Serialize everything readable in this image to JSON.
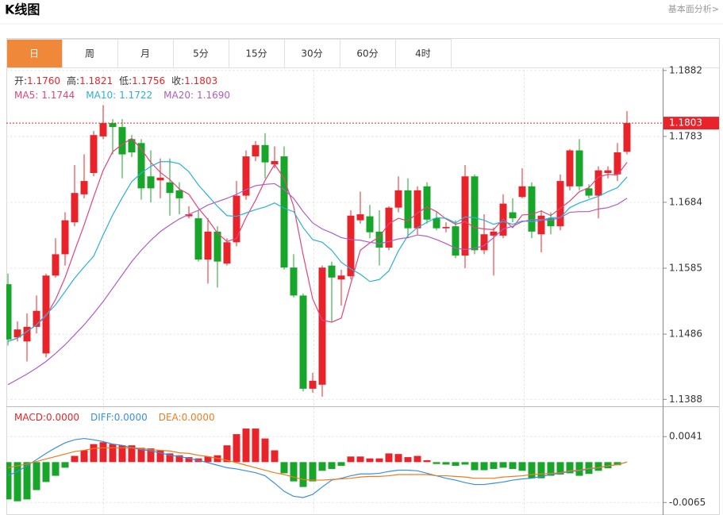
{
  "header": {
    "title": "K线图",
    "link": "基本面分析>"
  },
  "tabs": [
    {
      "label": "日",
      "active": true
    },
    {
      "label": "周"
    },
    {
      "label": "月"
    },
    {
      "label": "5分"
    },
    {
      "label": "15分"
    },
    {
      "label": "30分"
    },
    {
      "label": "60分"
    },
    {
      "label": "4时"
    }
  ],
  "chart_data": [
    {
      "type": "candlestick",
      "up_color": "#e8242a",
      "down_color": "#17a52a",
      "grid": true,
      "ylim": [
        1.138,
        1.1883
      ],
      "yticks": [
        1.1882,
        1.1783,
        1.1684,
        1.1585,
        1.1486,
        1.1388
      ],
      "readout": [
        {
          "name": "开:",
          "value": 1.176,
          "label": "1.1760"
        },
        {
          "name": "高:",
          "value": 1.1821,
          "label": "1.1821"
        },
        {
          "name": "低:",
          "value": 1.1756,
          "label": "1.1756"
        },
        {
          "name": "收:",
          "value": 1.1803,
          "label": "1.1803"
        }
      ],
      "open": [
        1.1561,
        1.1481,
        1.1475,
        1.1497,
        1.1457,
        1.1574,
        1.1606,
        1.1654,
        1.1696,
        1.1728,
        1.1783,
        1.1803,
        1.1797,
        1.1779,
        1.1773,
        1.1723,
        1.1717,
        1.1714,
        1.1702,
        1.1663,
        1.166,
        1.1598,
        1.164,
        1.1592,
        1.1624,
        1.1694,
        1.1753,
        1.177,
        1.1741,
        1.1753,
        1.1586,
        1.1544,
        1.1404,
        1.141,
        1.1589,
        1.1568,
        1.1573,
        1.1657,
        1.1663,
        1.164,
        1.1616,
        1.1676,
        1.1702,
        1.1645,
        1.1708,
        1.166,
        1.1645,
        1.1648,
        1.1604,
        1.1723,
        1.1612,
        1.1634,
        1.1634,
        1.1669,
        1.1692,
        1.1708,
        1.1636,
        1.166,
        1.1648,
        1.1708,
        1.1762,
        1.1705,
        1.1694,
        1.1728,
        1.1726,
        1.176
      ],
      "high": [
        1.1577,
        1.1505,
        1.1517,
        1.1544,
        1.1577,
        1.163,
        1.1669,
        1.174,
        1.1756,
        1.1791,
        1.183,
        1.1809,
        1.1809,
        1.1785,
        1.1779,
        1.1762,
        1.175,
        1.175,
        1.1714,
        1.1678,
        1.1672,
        1.166,
        1.1648,
        1.163,
        1.1716,
        1.1762,
        1.1776,
        1.1788,
        1.1768,
        1.1768,
        1.1606,
        1.1547,
        1.1428,
        1.1589,
        1.1595,
        1.1583,
        1.1672,
        1.17,
        1.168,
        1.1672,
        1.1678,
        1.1723,
        1.172,
        1.1708,
        1.1714,
        1.1669,
        1.1654,
        1.1657,
        1.174,
        1.1726,
        1.1666,
        1.1646,
        1.1696,
        1.169,
        1.1735,
        1.1714,
        1.1672,
        1.1669,
        1.1726,
        1.1764,
        1.1779,
        1.1711,
        1.1738,
        1.1738,
        1.1773,
        1.1821
      ],
      "low": [
        1.1469,
        1.1475,
        1.1445,
        1.1487,
        1.1451,
        1.1571,
        1.1589,
        1.1648,
        1.169,
        1.1723,
        1.1779,
        1.1756,
        1.172,
        1.1752,
        1.1688,
        1.1684,
        1.169,
        1.1664,
        1.1666,
        1.166,
        1.1595,
        1.1562,
        1.1556,
        1.1589,
        1.1618,
        1.1688,
        1.1746,
        1.172,
        1.1735,
        1.1583,
        1.1541,
        1.14,
        1.1398,
        1.1392,
        1.1505,
        1.1529,
        1.1568,
        1.1652,
        1.163,
        1.1589,
        1.1612,
        1.1669,
        1.163,
        1.1636,
        1.1652,
        1.1642,
        1.1639,
        1.16,
        1.1585,
        1.1606,
        1.1606,
        1.1574,
        1.163,
        1.1654,
        1.169,
        1.163,
        1.1609,
        1.1636,
        1.1642,
        1.1702,
        1.1702,
        1.169,
        1.166,
        1.172,
        1.1716,
        1.1756
      ],
      "close": [
        1.1478,
        1.1493,
        1.1497,
        1.1521,
        1.1574,
        1.1606,
        1.1657,
        1.1698,
        1.1716,
        1.1785,
        1.1803,
        1.1797,
        1.1756,
        1.1759,
        1.1705,
        1.1705,
        1.1721,
        1.1698,
        1.169,
        1.1666,
        1.1598,
        1.164,
        1.1595,
        1.1624,
        1.1694,
        1.1753,
        1.177,
        1.1744,
        1.1746,
        1.1586,
        1.1544,
        1.1404,
        1.1416,
        1.1586,
        1.1571,
        1.1574,
        1.1664,
        1.1666,
        1.1639,
        1.1616,
        1.1676,
        1.1702,
        1.1645,
        1.1702,
        1.1658,
        1.1645,
        1.1647,
        1.1604,
        1.1723,
        1.1612,
        1.1636,
        1.164,
        1.1682,
        1.166,
        1.1708,
        1.164,
        1.1664,
        1.1648,
        1.1716,
        1.1762,
        1.1708,
        1.1694,
        1.1732,
        1.1732,
        1.1759,
        1.1803
      ],
      "series": [
        {
          "name": "MA5:",
          "type": "line",
          "color": "#e0457b",
          "current": {
            "value": 1.1744,
            "label": "1.1744"
          },
          "values": [
            1.1475,
            1.148,
            1.149,
            1.15,
            1.1513,
            1.1538,
            1.1571,
            1.1611,
            1.165,
            1.1692,
            1.1732,
            1.176,
            1.1771,
            1.178,
            1.1764,
            1.1744,
            1.1729,
            1.1718,
            1.1704,
            1.1696,
            1.1675,
            1.1658,
            1.1638,
            1.1625,
            1.163,
            1.1661,
            1.1687,
            1.1717,
            1.1741,
            1.172,
            1.1678,
            1.1605,
            1.1539,
            1.1507,
            1.1504,
            1.151,
            1.1562,
            1.1612,
            1.1623,
            1.1632,
            1.1652,
            1.166,
            1.1656,
            1.1668,
            1.1677,
            1.167,
            1.1659,
            1.1651,
            1.1655,
            1.1646,
            1.1644,
            1.1643,
            1.1659,
            1.1646,
            1.1665,
            1.1666,
            1.1671,
            1.1664,
            1.1675,
            1.1686,
            1.17,
            1.1706,
            1.1722,
            1.1726,
            1.1725,
            1.1744
          ]
        },
        {
          "name": "MA10:",
          "type": "line",
          "color": "#2bb0d9",
          "current": {
            "value": 1.1722,
            "label": "1.1722"
          },
          "values": [
            1.1475,
            1.148,
            1.149,
            1.15,
            1.1515,
            1.153,
            1.155,
            1.157,
            1.1587,
            1.1603,
            1.1635,
            1.1665,
            1.1691,
            1.1715,
            1.1728,
            1.1738,
            1.1745,
            1.1745,
            1.1742,
            1.173,
            1.171,
            1.1694,
            1.1678,
            1.1664,
            1.1663,
            1.1668,
            1.1673,
            1.1677,
            1.1683,
            1.1675,
            1.167,
            1.1646,
            1.1628,
            1.1624,
            1.1612,
            1.1594,
            1.1584,
            1.1576,
            1.1565,
            1.1568,
            1.1581,
            1.1611,
            1.1634,
            1.1646,
            1.1654,
            1.1661,
            1.166,
            1.1653,
            1.1662,
            1.1661,
            1.1657,
            1.1651,
            1.1655,
            1.1651,
            1.1656,
            1.1655,
            1.1657,
            1.1661,
            1.1661,
            1.1676,
            1.1683,
            1.1688,
            1.1693,
            1.17,
            1.1706,
            1.1722
          ]
        },
        {
          "name": "MA20:",
          "type": "line",
          "color": "#b05cc6",
          "current": {
            "value": 1.169,
            "label": "1.1690"
          },
          "values": [
            1.141,
            1.1418,
            1.1426,
            1.1435,
            1.1445,
            1.1457,
            1.147,
            1.1485,
            1.15,
            1.1517,
            1.1535,
            1.1555,
            1.1575,
            1.1595,
            1.1612,
            1.1627,
            1.164,
            1.165,
            1.1659,
            1.1666,
            1.1672,
            1.168,
            1.1685,
            1.169,
            1.1696,
            1.1703,
            1.1709,
            1.1711,
            1.1712,
            1.1703,
            1.169,
            1.167,
            1.1653,
            1.1644,
            1.1638,
            1.1631,
            1.1628,
            1.1627,
            1.1624,
            1.1622,
            1.1625,
            1.1629,
            1.1631,
            1.1635,
            1.1633,
            1.1628,
            1.1622,
            1.1615,
            1.1613,
            1.1615,
            1.1619,
            1.1631,
            1.1644,
            1.1648,
            1.1655,
            1.1658,
            1.1658,
            1.1657,
            1.1661,
            1.1669,
            1.167,
            1.167,
            1.1674,
            1.1676,
            1.1681,
            1.169
          ]
        }
      ]
    },
    {
      "type": "macd",
      "grid": true,
      "ylim": [
        -0.008,
        0.0086
      ],
      "yticks": [
        0.0041,
        -0.0065
      ],
      "series": [
        {
          "name": "MACD:",
          "type": "bar",
          "color": "#e8242a",
          "up_color": "#e8242a",
          "down_color": "#17a52a",
          "current": {
            "value": 0,
            "label": "0.0000"
          },
          "values": [
            -0.006,
            -0.0063,
            -0.006,
            -0.0045,
            -0.0032,
            -0.0022,
            -0.0009,
            0.001,
            0.0019,
            0.0029,
            0.0032,
            0.0029,
            0.0027,
            0.0027,
            0.0023,
            0.0022,
            0.0019,
            0.0014,
            0.0011,
            0.0008,
            0.0006,
            0.0009,
            0.0011,
            0.0027,
            0.0045,
            0.0054,
            0.0054,
            0.0038,
            0.0019,
            -0.0018,
            -0.0031,
            -0.004,
            -0.0031,
            -0.0014,
            -0.0011,
            -0.0006,
            0.0009,
            0.0009,
            0.0006,
            0.0006,
            0.0014,
            0.0013,
            0.0008,
            0.001,
            0.0003,
            -0.0003,
            -0.0004,
            -0.0006,
            -0.0004,
            -0.0013,
            -0.0013,
            -0.0011,
            -0.0009,
            -0.0011,
            -0.0014,
            -0.0026,
            -0.0026,
            -0.0022,
            -0.002,
            -0.0018,
            -0.0022,
            -0.0019,
            -0.0014,
            -0.001,
            -0.0005,
            0
          ]
        },
        {
          "name": "DIFF:",
          "type": "line",
          "color": "#3a8fe0",
          "current": {
            "value": 0,
            "label": "0.0000"
          },
          "values": [
            -0.0022,
            -0.0015,
            -0.0006,
            0.0004,
            0.0014,
            0.0023,
            0.0031,
            0.0036,
            0.0038,
            0.0036,
            0.0033,
            0.0029,
            0.0027,
            0.0023,
            0.002,
            0.0018,
            0.0015,
            0.0011,
            0.0009,
            0.0006,
            0.0003,
            -0.0001,
            -0.0005,
            -0.0009,
            -0.0011,
            -0.0014,
            -0.0017,
            -0.0022,
            -0.0034,
            -0.0047,
            -0.0055,
            -0.0057,
            -0.0052,
            -0.004,
            -0.0029,
            -0.0026,
            -0.0022,
            -0.0019,
            -0.0019,
            -0.0018,
            -0.0015,
            -0.0013,
            -0.0013,
            -0.0014,
            -0.0018,
            -0.0022,
            -0.0026,
            -0.0029,
            -0.0033,
            -0.0036,
            -0.0036,
            -0.0034,
            -0.0032,
            -0.0029,
            -0.0027,
            -0.0026,
            -0.0023,
            -0.002,
            -0.0018,
            -0.0015,
            -0.0014,
            -0.0011,
            -0.0009,
            -0.0006,
            -0.0004,
            0
          ]
        },
        {
          "name": "DEA:",
          "type": "line",
          "color": "#f07b1e",
          "current": {
            "value": 0,
            "label": "0.0000"
          },
          "values": [
            -0.0009,
            -0.0006,
            -0.0003,
            0.0001,
            0.0005,
            0.0009,
            0.0013,
            0.0017,
            0.0019,
            0.0022,
            0.0023,
            0.0023,
            0.0023,
            0.0023,
            0.0022,
            0.002,
            0.0019,
            0.0018,
            0.0015,
            0.0014,
            0.0011,
            0.0009,
            0.0006,
            0.0003,
            -0.0001,
            -0.0005,
            -0.0009,
            -0.0013,
            -0.0017,
            -0.002,
            -0.0024,
            -0.0028,
            -0.0029,
            -0.0029,
            -0.0028,
            -0.0027,
            -0.0026,
            -0.0024,
            -0.0023,
            -0.0023,
            -0.0022,
            -0.002,
            -0.002,
            -0.002,
            -0.002,
            -0.0022,
            -0.0022,
            -0.0023,
            -0.0024,
            -0.0026,
            -0.0026,
            -0.0026,
            -0.0024,
            -0.0023,
            -0.0022,
            -0.002,
            -0.0019,
            -0.0018,
            -0.0017,
            -0.0014,
            -0.0013,
            -0.001,
            -0.0009,
            -0.0006,
            -0.0004,
            0
          ]
        }
      ]
    }
  ]
}
